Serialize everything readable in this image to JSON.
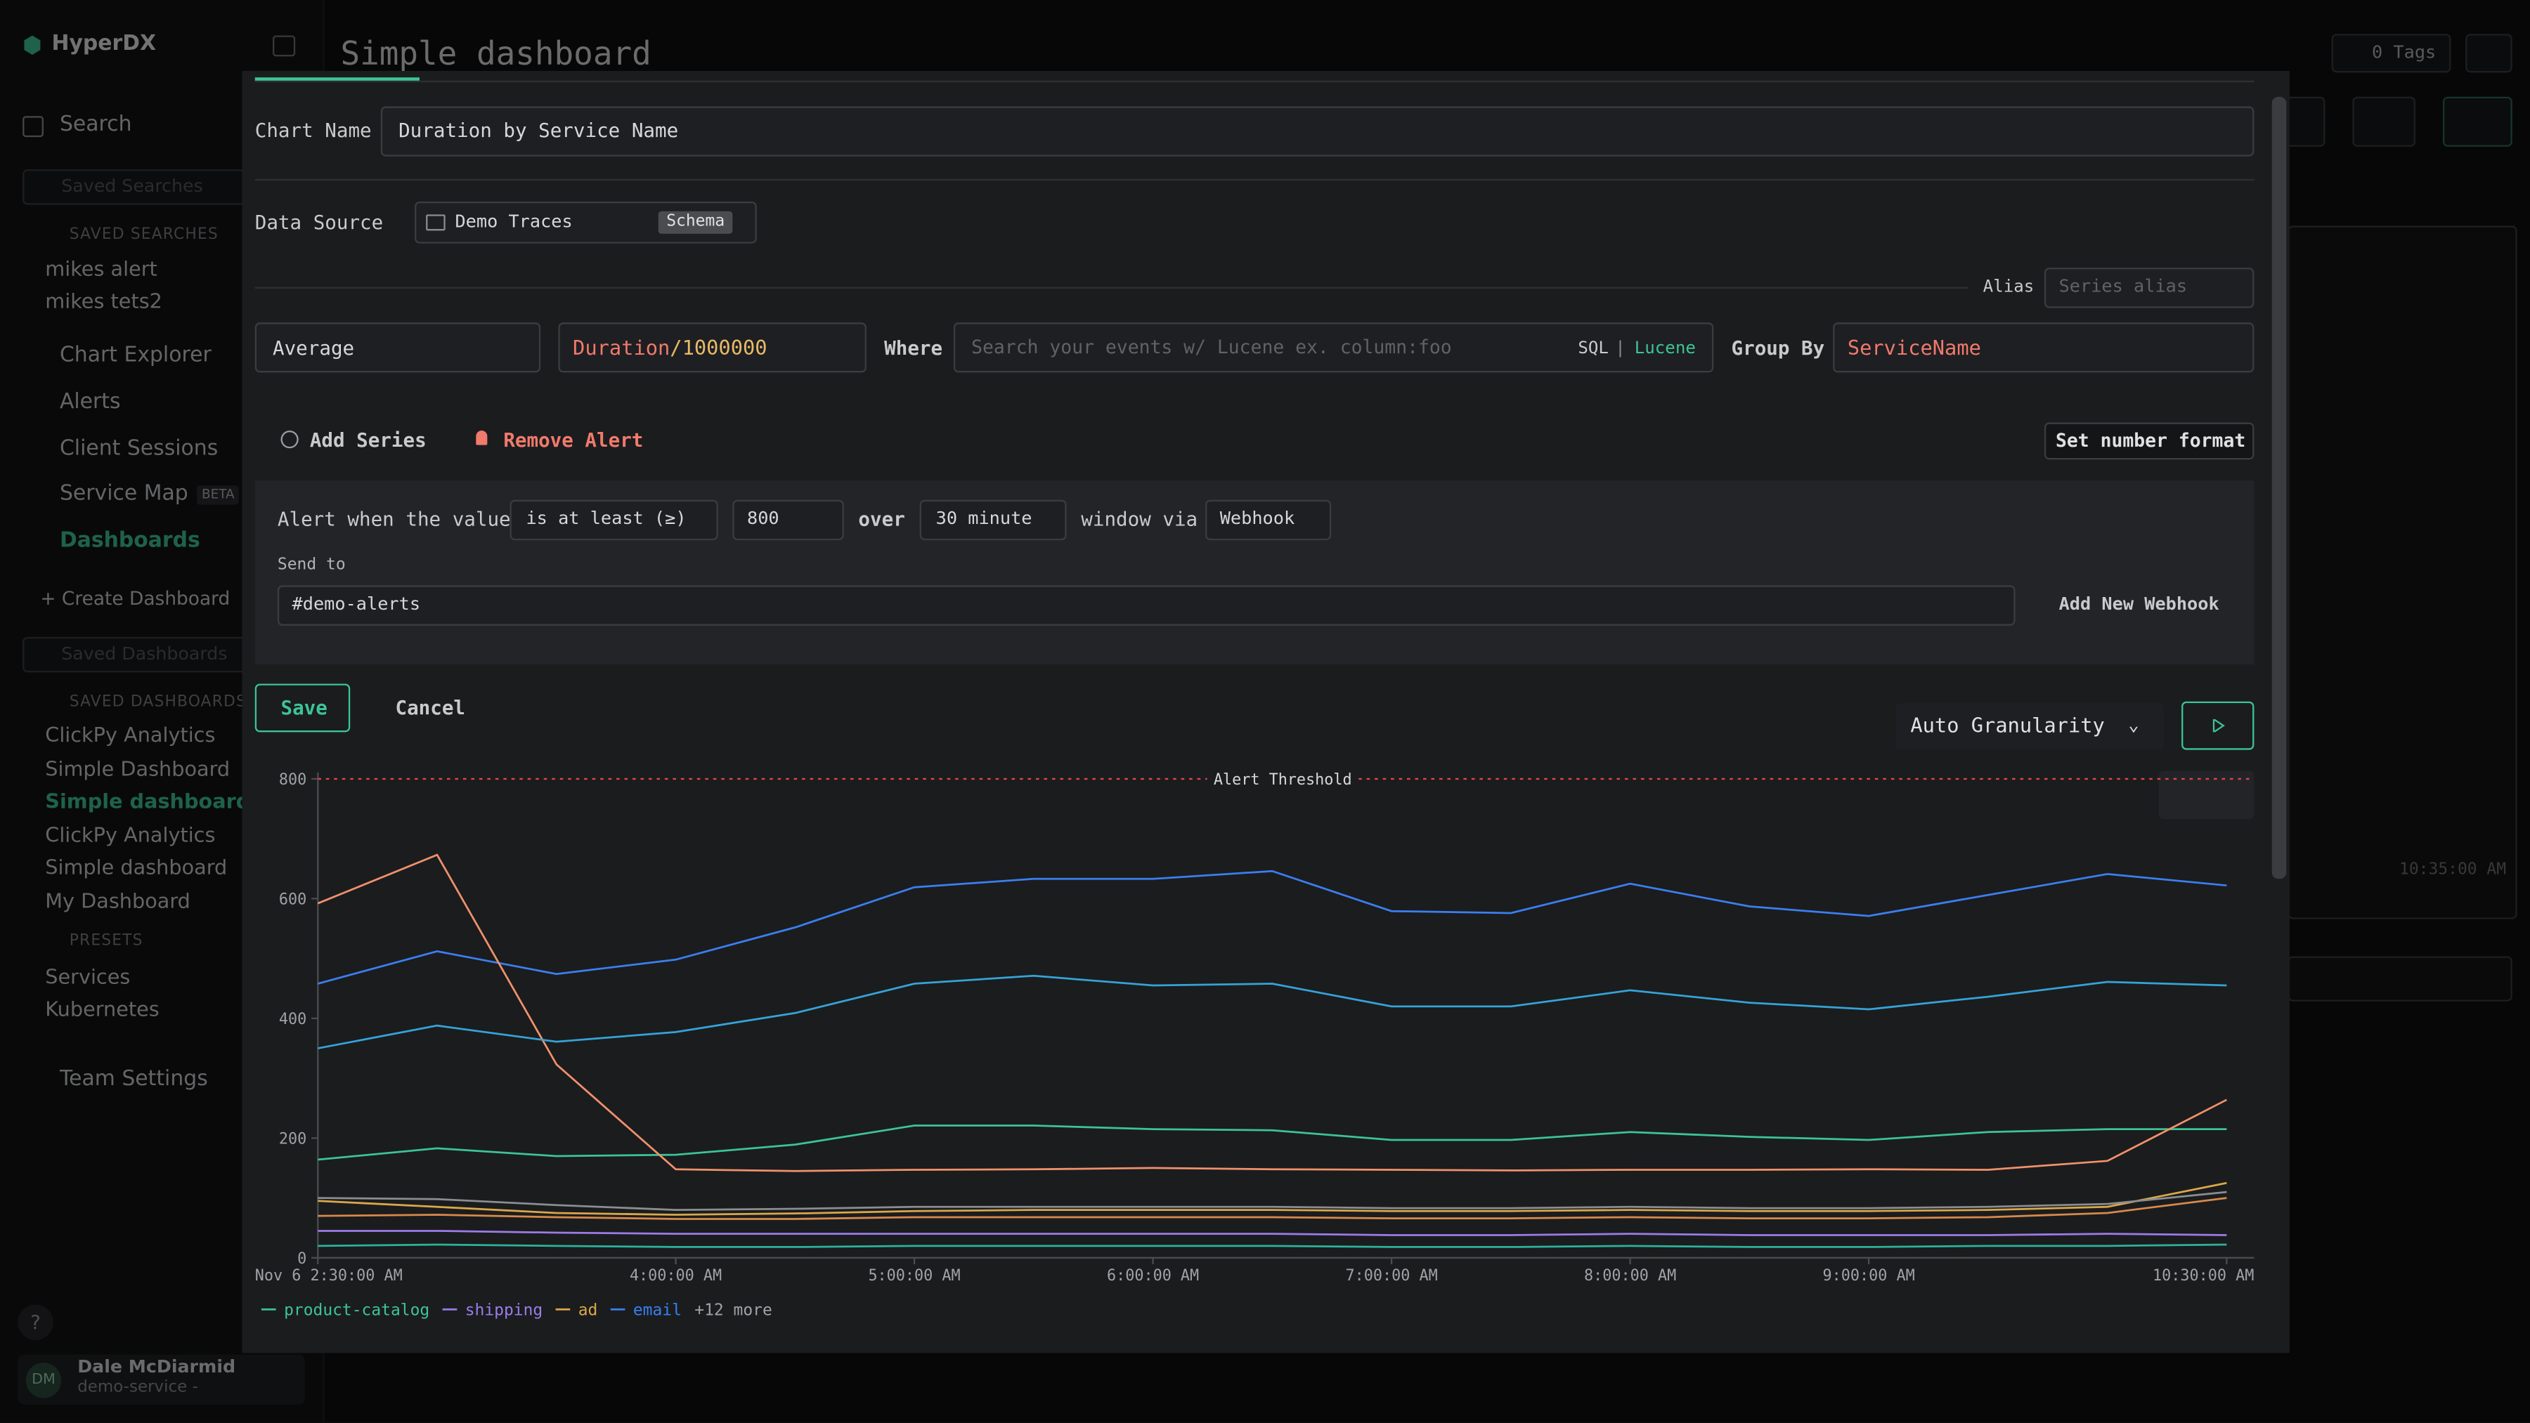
{
  "app": {
    "brand": "HyperDX"
  },
  "sidebar": {
    "search": "Search",
    "saved_searches_placeholder": "Saved Searches",
    "saved_searches_heading": "SAVED SEARCHES",
    "saved_searches": [
      "mikes alert",
      "mikes tets2"
    ],
    "nav": [
      {
        "label": "Chart Explorer"
      },
      {
        "label": "Alerts"
      },
      {
        "label": "Client Sessions"
      },
      {
        "label": "Service Map",
        "badge": "BETA"
      },
      {
        "label": "Dashboards"
      }
    ],
    "create_dashboard": "Create Dashboard",
    "saved_dashboards_placeholder": "Saved Dashboards",
    "saved_dashboards_heading": "SAVED DASHBOARDS",
    "saved_dashboards": [
      "ClickPy Analytics",
      "Simple Dashboard",
      "Simple dashboard",
      "ClickPy Analytics",
      "Simple dashboard",
      "My Dashboard"
    ],
    "presets_heading": "PRESETS",
    "presets": [
      "Services",
      "Kubernetes"
    ],
    "team_settings": "Team Settings",
    "help": "?",
    "user": {
      "initials": "DM",
      "name": "Dale McDiarmid",
      "team": "demo-service -"
    }
  },
  "header": {
    "title": "Simple dashboard",
    "tags": "0 Tags"
  },
  "background": {
    "time_label": "10:35:00 AM"
  },
  "editor": {
    "chart_name_label": "Chart Name",
    "chart_name": "Duration by Service Name",
    "data_source_label": "Data Source",
    "data_source": "Demo Traces",
    "schema": "Schema",
    "alias_label": "Alias",
    "alias_placeholder": "Series alias",
    "aggregation": "Average",
    "expr_field": "Duration",
    "expr_rest": "/1000000",
    "where_label": "Where",
    "where_placeholder": "Search your events w/ Lucene ex. column:foo",
    "sql": "SQL",
    "separator": "|",
    "lucene": "Lucene",
    "group_by_label": "Group By",
    "group_by": "ServiceName",
    "add_series": "Add Series",
    "remove_alert": "Remove Alert",
    "number_format": "Set number format",
    "alert": {
      "prefix": "Alert when the value",
      "condition": "is at least (≥)",
      "threshold": 800,
      "over": "over",
      "window": "30 minute",
      "via": "window via",
      "channel": "Webhook",
      "send_to_label": "Send to",
      "send_to": "#demo-alerts",
      "add_webhook": "Add New Webhook"
    },
    "save": "Save",
    "cancel": "Cancel",
    "granularity": "Auto Granularity"
  },
  "chart_data": {
    "type": "line",
    "threshold_label": "Alert Threshold",
    "x": [
      150,
      180,
      210,
      240,
      270,
      300,
      330,
      360,
      390,
      420,
      450,
      480,
      510,
      540,
      570,
      600,
      630
    ],
    "xlim": [
      150,
      630
    ],
    "xticks": [
      {
        "value": 150,
        "label": "Nov 6 2:30:00 AM"
      },
      {
        "value": 240,
        "label": "4:00:00 AM"
      },
      {
        "value": 300,
        "label": "5:00:00 AM"
      },
      {
        "value": 360,
        "label": "6:00:00 AM"
      },
      {
        "value": 420,
        "label": "7:00:00 AM"
      },
      {
        "value": 480,
        "label": "8:00:00 AM"
      },
      {
        "value": 540,
        "label": "9:00:00 AM"
      },
      {
        "value": 630,
        "label": "10:30:00 AM"
      }
    ],
    "ylim": [
      0,
      800
    ],
    "yticks": [
      0,
      200,
      400,
      600,
      800
    ],
    "grid": false,
    "series": [
      {
        "name": "product-catalog",
        "color": "#3cc495",
        "values": [
          164,
          183,
          170,
          172,
          189,
          221,
          221,
          215,
          213,
          197,
          197,
          210,
          202,
          197,
          210,
          215,
          215
        ]
      },
      {
        "name": "shipping",
        "color": "#9b7ce8",
        "values": [
          45,
          45,
          42,
          40,
          40,
          40,
          40,
          40,
          40,
          38,
          38,
          40,
          38,
          38,
          38,
          40,
          38
        ]
      },
      {
        "name": "ad",
        "color": "#d9a84a",
        "values": [
          95,
          85,
          75,
          72,
          74,
          78,
          80,
          80,
          80,
          78,
          78,
          80,
          78,
          78,
          80,
          85,
          125
        ]
      },
      {
        "name": "email",
        "color": "#3a7ff0",
        "values": [
          458,
          512,
          474,
          498,
          552,
          619,
          633,
          633,
          646,
          579,
          576,
          625,
          587,
          571,
          606,
          641,
          622
        ]
      },
      {
        "color": "#f0916b",
        "values": [
          592,
          673,
          323,
          148,
          145,
          147,
          148,
          150,
          148,
          147,
          146,
          147,
          147,
          148,
          147,
          162,
          264
        ]
      },
      {
        "color": "#35a3d8",
        "values": [
          350,
          388,
          361,
          377,
          409,
          458,
          471,
          455,
          458,
          420,
          420,
          447,
          426,
          415,
          436,
          461,
          455
        ]
      },
      {
        "color": "#8a8d91",
        "values": [
          100,
          98,
          88,
          80,
          82,
          85,
          85,
          85,
          85,
          83,
          83,
          85,
          83,
          83,
          85,
          90,
          110
        ]
      },
      {
        "color": "#d8894a",
        "values": [
          70,
          72,
          68,
          65,
          65,
          68,
          68,
          68,
          68,
          66,
          66,
          68,
          66,
          66,
          68,
          75,
          100
        ]
      },
      {
        "color": "#2bb39a",
        "values": [
          20,
          22,
          20,
          18,
          18,
          20,
          20,
          20,
          20,
          18,
          18,
          20,
          18,
          18,
          20,
          20,
          22
        ]
      }
    ],
    "legend_more": "+12 more"
  }
}
